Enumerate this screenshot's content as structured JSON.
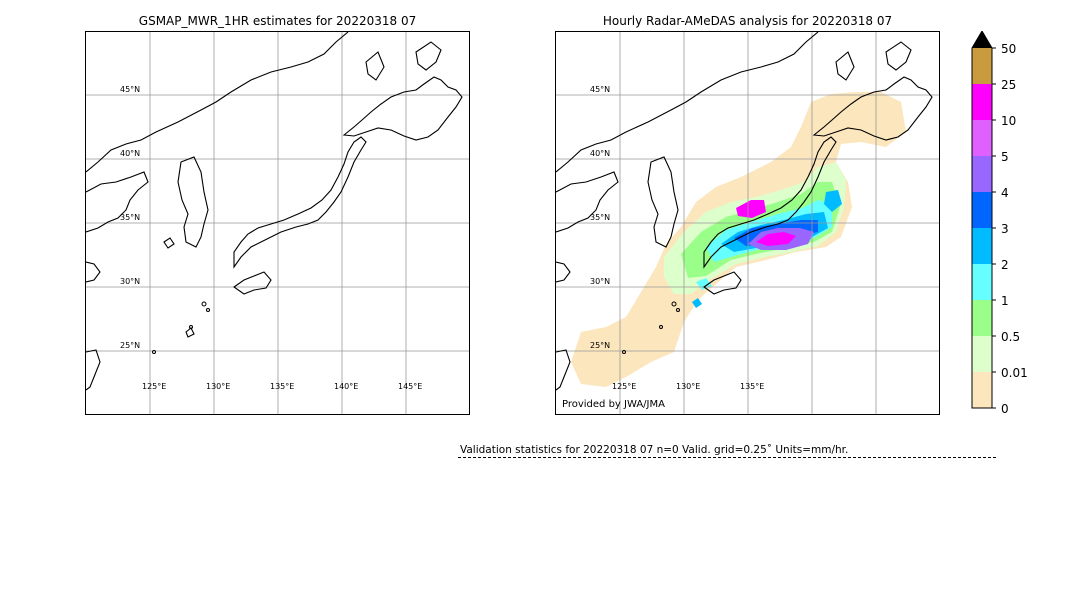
{
  "left_panel": {
    "title": "GSMAP_MWR_1HR estimates for 20220318 07",
    "lat_labels": [
      "45°N",
      "40°N",
      "35°N",
      "30°N",
      "25°N"
    ],
    "lon_labels": [
      "125°E",
      "130°E",
      "135°E",
      "140°E",
      "145°E"
    ]
  },
  "right_panel": {
    "title": "Hourly Radar-AMeDAS analysis for 20220318 07",
    "lat_labels": [
      "45°N",
      "40°N",
      "35°N",
      "30°N",
      "25°N"
    ],
    "lon_labels": [
      "125°E",
      "130°E",
      "135°E"
    ],
    "credit": "Provided by JWA/JMA"
  },
  "colorbar": {
    "labels": [
      "50",
      "25",
      "10",
      "5",
      "4",
      "3",
      "2",
      "1",
      "0.5",
      "0.01",
      "0"
    ],
    "colors": [
      "#c99a3e",
      "#ff00ff",
      "#e060ff",
      "#9966ff",
      "#0066ff",
      "#00bbff",
      "#66ffff",
      "#99ff88",
      "#ddffcc",
      "#fbe6bd"
    ],
    "extend_color": "#000000"
  },
  "stats": {
    "text": "Validation statistics for 20220318 07  n=0 Valid. grid=0.25˚ Units=mm/hr."
  }
}
